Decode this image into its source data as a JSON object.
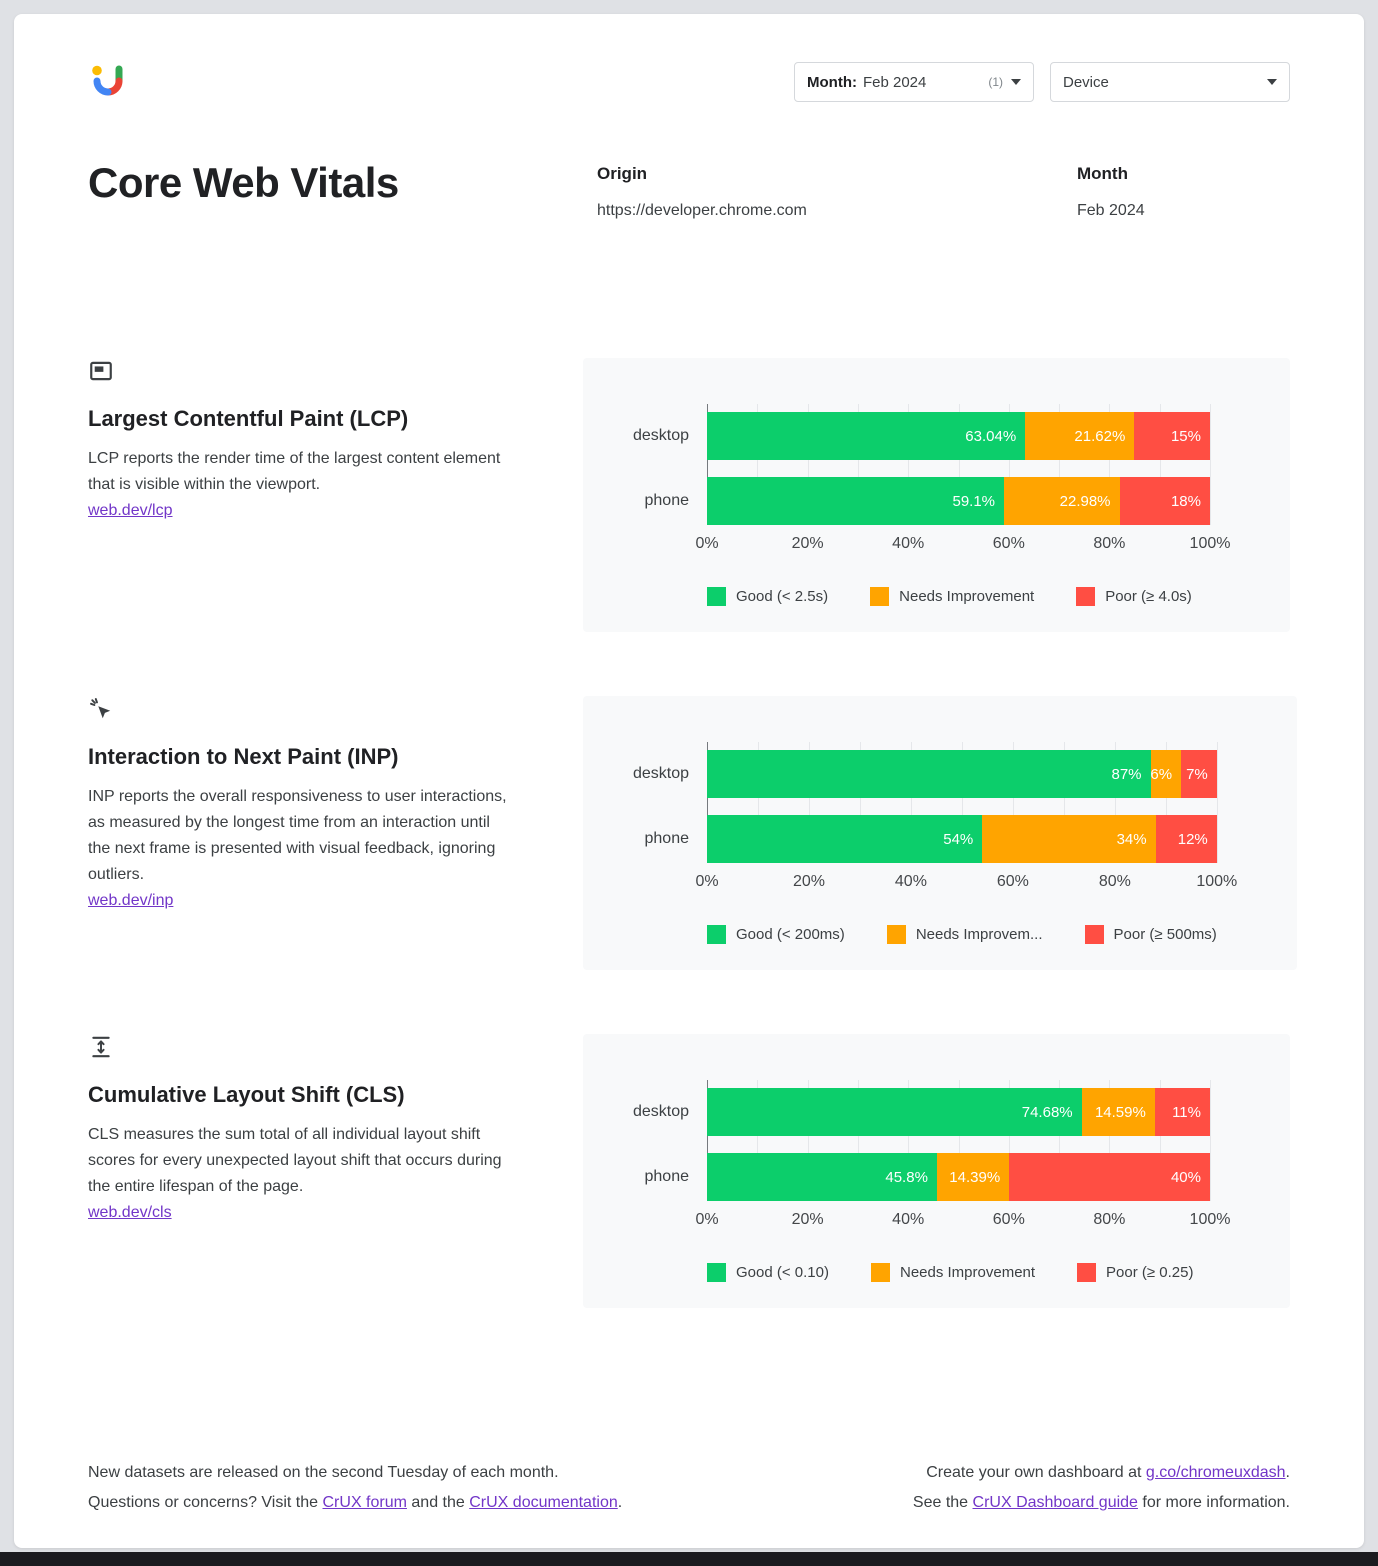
{
  "colors": {
    "good": "#0cce6b",
    "needs_improvement": "#ffa400",
    "poor": "#ff4e43",
    "link": "#7236c8",
    "axis": "#767a7e"
  },
  "toolbar": {
    "month_label": "Month:",
    "month_value": "Feb 2024",
    "month_badge": "(1)",
    "device_label": "Device"
  },
  "header": {
    "title": "Core Web Vitals",
    "origin_label": "Origin",
    "origin_value": "https://developer.chrome.com",
    "month_label": "Month",
    "month_value": "Feb 2024"
  },
  "sections": [
    {
      "heading": "Largest Contentful Paint (LCP)",
      "description": "LCP reports the render time of the largest content element that is visible within the viewport.",
      "link": "web.dev/lcp"
    },
    {
      "heading": "Interaction to Next Paint (INP)",
      "description": "INP reports the overall responsiveness to user interactions, as measured by the longest time from an interaction until the next frame is presented with visual feedback, ignoring outliers.",
      "link": "web.dev/inp"
    },
    {
      "heading": "Cumulative Layout Shift (CLS)",
      "description": "CLS measures the sum total of all individual layout shift scores for every unexpected layout shift that occurs during the entire lifespan of the page.",
      "link": "web.dev/cls"
    }
  ],
  "chart_data": [
    {
      "metric": "LCP",
      "type": "bar",
      "stacked": true,
      "orientation": "horizontal",
      "categories": [
        "desktop",
        "phone"
      ],
      "series": [
        {
          "name": "Good (< 2.5s)",
          "color": "#0cce6b",
          "values": [
            63.04,
            59.1
          ],
          "labels": [
            "63.04%",
            "59.1%"
          ]
        },
        {
          "name": "Needs Improvement",
          "color": "#ffa400",
          "values": [
            21.62,
            22.98
          ],
          "labels": [
            "21.62%",
            "22.98%"
          ]
        },
        {
          "name": "Poor (≥ 4.0s)",
          "color": "#ff4e43",
          "values": [
            15,
            18
          ],
          "labels": [
            "15%",
            "18%"
          ]
        }
      ],
      "x_ticks": [
        "0%",
        "20%",
        "40%",
        "60%",
        "80%",
        "100%"
      ],
      "xlim": [
        0,
        100
      ],
      "legend_position": "bottom",
      "grid": true
    },
    {
      "metric": "INP",
      "type": "bar",
      "stacked": true,
      "orientation": "horizontal",
      "categories": [
        "desktop",
        "phone"
      ],
      "series": [
        {
          "name": "Good (< 200ms)",
          "color": "#0cce6b",
          "values": [
            87,
            54
          ],
          "labels": [
            "87%",
            "54%"
          ]
        },
        {
          "name": "Needs Improvement",
          "legend_label": "Needs Improvem...",
          "color": "#ffa400",
          "values": [
            6,
            34
          ],
          "labels": [
            "6%",
            "34%"
          ]
        },
        {
          "name": "Poor (≥ 500ms)",
          "color": "#ff4e43",
          "values": [
            7,
            12
          ],
          "labels": [
            "7%",
            "12%"
          ]
        }
      ],
      "x_ticks": [
        "0%",
        "20%",
        "40%",
        "60%",
        "80%",
        "100%"
      ],
      "xlim": [
        0,
        100
      ],
      "legend_position": "bottom",
      "grid": true
    },
    {
      "metric": "CLS",
      "type": "bar",
      "stacked": true,
      "orientation": "horizontal",
      "categories": [
        "desktop",
        "phone"
      ],
      "series": [
        {
          "name": "Good (< 0.10)",
          "color": "#0cce6b",
          "values": [
            74.68,
            45.8
          ],
          "labels": [
            "74.68%",
            "45.8%"
          ]
        },
        {
          "name": "Needs Improvement",
          "color": "#ffa400",
          "values": [
            14.59,
            14.39
          ],
          "labels": [
            "14.59%",
            "14.39%"
          ]
        },
        {
          "name": "Poor (≥ 0.25)",
          "color": "#ff4e43",
          "values": [
            11,
            40
          ],
          "labels": [
            "11%",
            "40%"
          ]
        }
      ],
      "x_ticks": [
        "0%",
        "20%",
        "40%",
        "60%",
        "80%",
        "100%"
      ],
      "xlim": [
        0,
        100
      ],
      "legend_position": "bottom",
      "grid": true
    }
  ],
  "footer": {
    "left_line1": "New datasets are released on the second Tuesday of each month.",
    "left_line2_pre": "Questions or concerns? Visit the ",
    "left_line2_link1": "CrUX forum",
    "left_line2_mid": " and the ",
    "left_line2_link2": "CrUX documentation",
    "left_line2_post": ".",
    "right_line1_pre": "Create your own dashboard at ",
    "right_line1_link": "g.co/chromeuxdash",
    "right_line1_post": ".",
    "right_line2_pre": "See the ",
    "right_line2_link": "CrUX Dashboard guide",
    "right_line2_post": " for more information."
  }
}
